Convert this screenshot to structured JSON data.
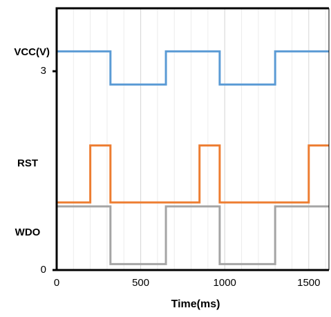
{
  "chart_data": {
    "type": "line",
    "x_label": "Time(ms)",
    "xlim": [
      0,
      1620
    ],
    "ylim": [
      0,
      3.95
    ],
    "xticks": [
      0,
      500,
      1000,
      1500
    ],
    "xminorticks": [
      100,
      200,
      300,
      400,
      600,
      700,
      800,
      900,
      1100,
      1200,
      1300,
      1400,
      1600
    ],
    "yticks": [
      0,
      3
    ],
    "grid": true,
    "series": [
      {
        "name": "VCC(V)",
        "color": "#5b9bd5",
        "x": [
          0,
          320,
          320,
          650,
          650,
          970,
          970,
          1300,
          1300,
          1620
        ],
        "values": [
          3.3,
          3.3,
          2.8,
          2.8,
          3.3,
          3.3,
          2.8,
          2.8,
          3.3,
          3.3
        ]
      },
      {
        "name": "RST",
        "color": "#ed7d31",
        "x": [
          0,
          200,
          200,
          320,
          320,
          850,
          850,
          970,
          970,
          1500,
          1500,
          1620
        ],
        "values": [
          1.02,
          1.02,
          1.88,
          1.88,
          1.02,
          1.02,
          1.88,
          1.88,
          1.02,
          1.02,
          1.88,
          1.88
        ]
      },
      {
        "name": "WDO",
        "color": "#a5a5a5",
        "x": [
          0,
          320,
          320,
          650,
          650,
          970,
          970,
          1300,
          1300,
          1620
        ],
        "values": [
          0.96,
          0.96,
          0.09,
          0.09,
          0.96,
          0.96,
          0.09,
          0.09,
          0.96,
          0.96
        ]
      }
    ]
  }
}
